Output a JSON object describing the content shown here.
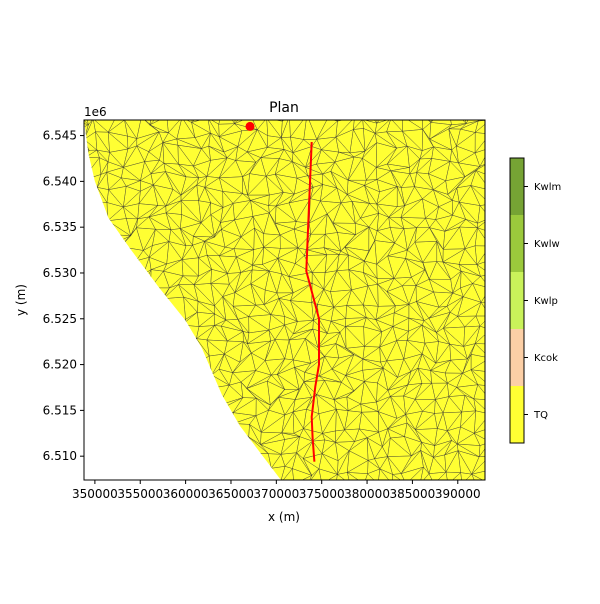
{
  "chart_data": {
    "type": "map-plan",
    "title": "Plan",
    "xlabel": "x (m)",
    "ylabel": "y (m)",
    "y_offset_label": "1e6",
    "xlim": [
      348800,
      393000
    ],
    "ylim": [
      6507400,
      6546700
    ],
    "xticks": [
      350000,
      355000,
      360000,
      365000,
      370000,
      375000,
      380000,
      385000,
      390000
    ],
    "xtick_labels": [
      "350000",
      "355000",
      "360000",
      "365000",
      "370000",
      "375000",
      "380000",
      "385000",
      "390000"
    ],
    "yticks": [
      6510000,
      6515000,
      6520000,
      6525000,
      6530000,
      6535000,
      6540000,
      6545000
    ],
    "ytick_labels": [
      "6.510",
      "6.515",
      "6.520",
      "6.525",
      "6.530",
      "6.535",
      "6.540",
      "6.545"
    ],
    "domain_fill_color": "#ffff33",
    "mesh_line_color": "#333333",
    "domain_outline": [
      [
        348800,
        6546700
      ],
      [
        393000,
        6546700
      ],
      [
        393000,
        6507400
      ],
      [
        370500,
        6507400
      ],
      [
        366000,
        6513300
      ],
      [
        364000,
        6516700
      ],
      [
        361800,
        6521800
      ],
      [
        360000,
        6524800
      ],
      [
        357000,
        6528500
      ],
      [
        354000,
        6532500
      ],
      [
        351500,
        6536000
      ],
      [
        350000,
        6540000
      ],
      [
        349300,
        6543000
      ],
      [
        348800,
        6546700
      ]
    ],
    "line": {
      "color": "#ff0000",
      "points": [
        [
          373900,
          6544300
        ],
        [
          373600,
          6537300
        ],
        [
          373300,
          6530200
        ],
        [
          373900,
          6528000
        ],
        [
          374700,
          6525000
        ],
        [
          374700,
          6520000
        ],
        [
          374300,
          6517600
        ],
        [
          373900,
          6514300
        ],
        [
          374000,
          6512000
        ],
        [
          374200,
          6509400
        ]
      ]
    },
    "point": {
      "color": "#ff0000",
      "x": 367100,
      "y": 6546000
    },
    "colorbar": {
      "labels": [
        "Kwlm",
        "Kwlw",
        "Kwlp",
        "Kcok",
        "TQ"
      ],
      "colors": [
        "#76a334",
        "#9bc93c",
        "#c9f25a",
        "#fccfa6",
        "#ffff33"
      ]
    }
  }
}
